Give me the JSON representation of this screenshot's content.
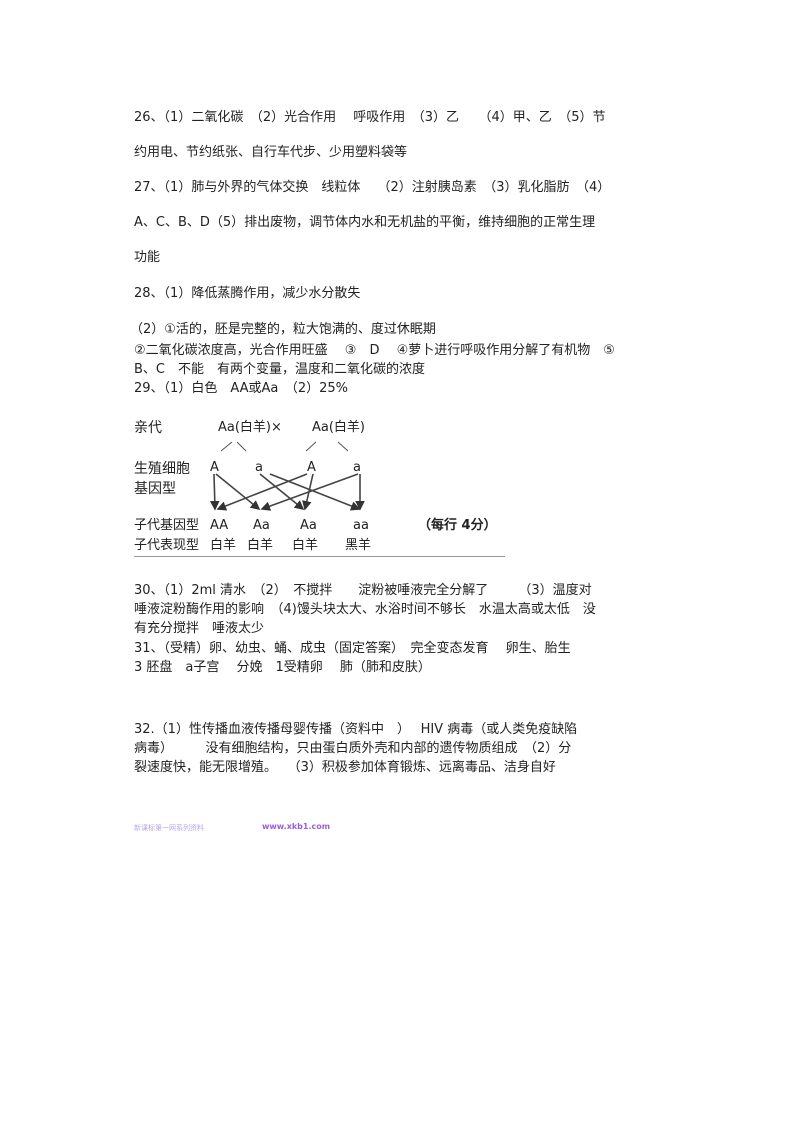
{
  "answers": {
    "q26": [
      "26、（1）二氧化碳　（2）光合作用　 呼吸作用　（3）乙　　（4）甲、乙　（5）节",
      "约用电、节约纸张、自行车代步、少用塑料袋等"
    ],
    "q27": [
      "27、（1）肺与外界的气体交换　线粒体　 （2）注射胰岛素　（3）乳化脂肪　（4）",
      "A、C、B、D（5）排出废物，调节体内水和无机盐的平衡，维持细胞的正常生理",
      "功能"
    ],
    "q28": [
      "28、（1）降低蒸腾作用，减少水分散失",
      "（2）①活的，胚是完整的，粒大饱满的、度过休眠期",
      "②二氧化碳浓度高，光合作用旺盛　 ③　D　 ④萝卜进行呼吸作用分解了有机物　⑤",
      "B、C　不能　有两个变量，温度和二氧化碳的浓度"
    ],
    "q29": [
      "29、（1）白色　AA或Aa　（2）25%"
    ],
    "q30": [
      "30、（1）2ml 清水　（2）　不搅拌　　淀粉被唾液完全分解了　　 （3）温度对",
      "唾液淀粉酶作用的影响　（4)馒头块太大、水浴时间不够长　水温太高或太低　没",
      "有充分搅拌　唾液太少"
    ],
    "q31": [
      "31、（受精）卵、幼虫、蛹、成虫（固定答案）　完全变态发育　 卵生、胎生",
      "3 胚盘　a子宫　 分娩　1受精卵　 肺（肺和皮肤）"
    ],
    "q32": [
      "32.（1）性传播血液传播母婴传播（资料中　）　 HIV 病毒（或人类免疫缺陷",
      "病毒）　　　没有细胞结构，只由蛋白质外壳和内部的遗传物质组成　（2）分",
      "裂速度快，能无限增殖。　 （3）积极参加体育锻炼、远离毒品、洁身自好"
    ]
  },
  "diagram": {
    "parent_label": "亲代",
    "parent1": "Aa(白羊)×",
    "parent2": "Aa(白羊)",
    "gamete_label_1": "生殖细胞",
    "gamete_label_2": "基因型",
    "gametes": [
      "A",
      "a",
      "A",
      "a"
    ],
    "offspring_genotype_label": "子代基因型",
    "offspring_genotypes": [
      "AA",
      "Aa",
      "Aa",
      "aa"
    ],
    "score_note": "（每行 4分）",
    "offspring_phenotype_label": "子代表现型",
    "offspring_phenotypes": [
      "白羊",
      "白羊",
      "白羊",
      "黑羊"
    ]
  },
  "footer": {
    "left": "新课标第一网系列资料",
    "right": "www.xkb1.com"
  }
}
